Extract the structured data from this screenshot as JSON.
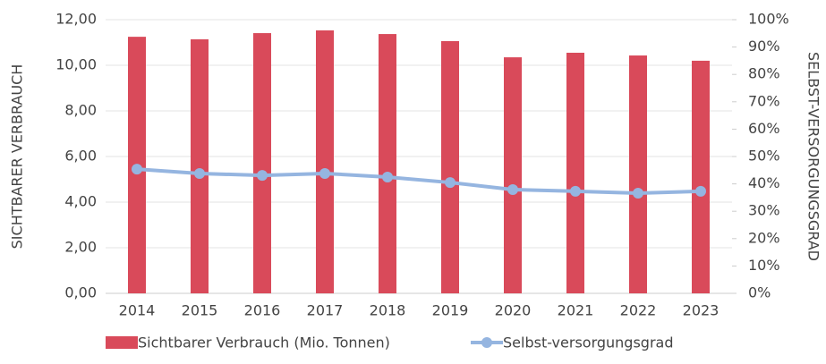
{
  "chart_data": {
    "type": "bar_line",
    "y_label": "SICHTBARER VERBRAUCH",
    "y2_label": "SELBST-VERSORGUNGSGRAD",
    "categories": [
      "2014",
      "2015",
      "2016",
      "2017",
      "2018",
      "2019",
      "2020",
      "2021",
      "2022",
      "2023"
    ],
    "series": [
      {
        "name": "Sichtbarer Verbrauch (Mio. Tonnen)",
        "color": "#d94a5a",
        "kind": "bar",
        "axis": "y",
        "values": [
          11.25,
          11.14,
          11.41,
          11.53,
          11.37,
          11.06,
          10.35,
          10.55,
          10.43,
          10.2
        ]
      },
      {
        "name": "Selbst-versorgungsgrad",
        "color": "#95b5e0",
        "kind": "line",
        "axis": "y2",
        "values": [
          45.4,
          43.8,
          43.1,
          43.8,
          42.5,
          40.5,
          37.9,
          37.3,
          36.6,
          37.3
        ]
      }
    ],
    "ylim": [
      0,
      12
    ],
    "yticks": [
      {
        "value": 0,
        "label": "0,00"
      },
      {
        "value": 2,
        "label": "2,00"
      },
      {
        "value": 4,
        "label": "4,00"
      },
      {
        "value": 6,
        "label": "6,00"
      },
      {
        "value": 8,
        "label": "8,00"
      },
      {
        "value": 10,
        "label": "10,00"
      },
      {
        "value": 12,
        "label": "12,00"
      }
    ],
    "y2lim": [
      0,
      100
    ],
    "y2ticks": [
      {
        "value": 0,
        "label": "0%"
      },
      {
        "value": 10,
        "label": "10%"
      },
      {
        "value": 20,
        "label": "20%"
      },
      {
        "value": 30,
        "label": "30%"
      },
      {
        "value": 40,
        "label": "40%"
      },
      {
        "value": 50,
        "label": "50%"
      },
      {
        "value": 60,
        "label": "60%"
      },
      {
        "value": 70,
        "label": "70%"
      },
      {
        "value": 80,
        "label": "80%"
      },
      {
        "value": 90,
        "label": "90%"
      },
      {
        "value": 100,
        "label": "100%"
      }
    ],
    "grid": true,
    "legend": "bottom"
  }
}
